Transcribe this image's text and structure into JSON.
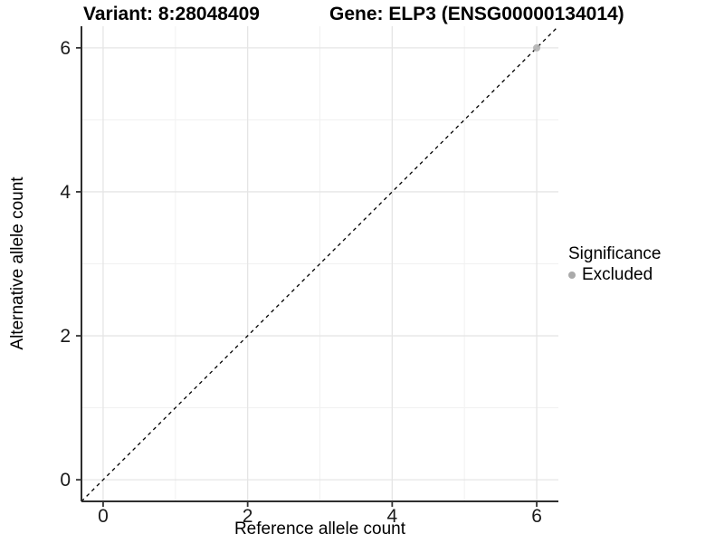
{
  "chart_data": {
    "type": "scatter",
    "title_left": "Variant: 8:28048409",
    "title_right": "Gene: ELP3 (ENSG00000134014)",
    "xlabel": "Reference allele count",
    "ylabel": "Alternative allele count",
    "xlim": [
      -0.3,
      6.3
    ],
    "ylim": [
      -0.3,
      6.3
    ],
    "x_major_ticks": [
      0,
      2,
      4,
      6
    ],
    "y_major_ticks": [
      0,
      2,
      4,
      6
    ],
    "x_minor_ticks": [
      1,
      3,
      5
    ],
    "y_minor_ticks": [
      1,
      3,
      5
    ],
    "grid": "major and minor gridlines, white panel background",
    "reference_line": {
      "kind": "identity y=x",
      "style": "dashed",
      "color": "#000000"
    },
    "series": [
      {
        "name": "Excluded",
        "color": "#b3b3b3",
        "points": [
          {
            "x": 6,
            "y": 6
          }
        ]
      }
    ],
    "legend": {
      "title": "Significance",
      "position": "right",
      "items": [
        {
          "label": "Excluded",
          "color": "#aaaaaa"
        }
      ]
    }
  },
  "colors": {
    "background": "#ffffff",
    "grid_major": "#e5e5e5",
    "grid_minor": "#f1f1f1",
    "axis_line": "#2e2e2e",
    "tick_mark": "#333333",
    "tick_text": "#1a1a1a",
    "point_fill": "#b3b3b3",
    "dashed_line": "#000000"
  }
}
